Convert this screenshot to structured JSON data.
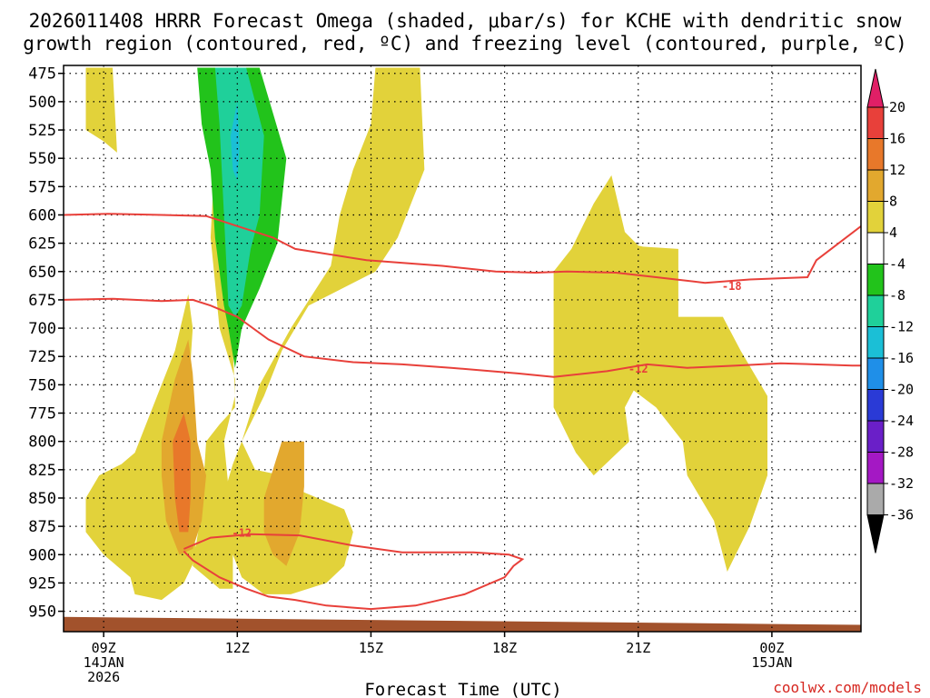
{
  "chart_data": {
    "type": "heatmap",
    "title": [
      "2026011408 HRRR Forecast Omega (shaded, μbar/s) for KCHE with dendritic snow",
      "growth region (contoured, red, ºC) and freezing level (contoured, purple, ºC)"
    ],
    "xlabel": "Forecast Time (UTC)",
    "ylabel": "",
    "credit": "coolwx.com/models",
    "x_ticks": [
      {
        "hour": 9,
        "lines": [
          "09Z",
          "14JAN",
          "2026"
        ]
      },
      {
        "hour": 12,
        "lines": [
          "12Z"
        ]
      },
      {
        "hour": 15,
        "lines": [
          "15Z"
        ]
      },
      {
        "hour": 18,
        "lines": [
          "18Z"
        ]
      },
      {
        "hour": 21,
        "lines": [
          "21Z"
        ]
      },
      {
        "hour": 24,
        "lines": [
          "00Z",
          "15JAN"
        ]
      }
    ],
    "xlim": [
      8.1,
      26.0
    ],
    "y_ticks": [
      475,
      500,
      525,
      550,
      575,
      600,
      625,
      650,
      675,
      700,
      725,
      750,
      775,
      800,
      825,
      850,
      875,
      900,
      925,
      950
    ],
    "ylim": [
      468,
      968
    ],
    "colorbar": {
      "ticks": [
        "20",
        "16",
        "12",
        "8",
        "4",
        "-4",
        "-8",
        "-12",
        "-16",
        "-20",
        "-24",
        "-28",
        "-32",
        "-36"
      ],
      "colors": [
        "#e01f66",
        "#e8403a",
        "#e8782a",
        "#e2a82e",
        "#e2d23a",
        "#ffffff",
        "#22c31b",
        "#1fd09a",
        "#1bbfd6",
        "#1f8fe8",
        "#2a3ad6",
        "#6a1fc8",
        "#a418c4",
        "#aaaaaa",
        "#000000"
      ]
    },
    "terrain_color": "#a2522c",
    "omega_regions": [
      {
        "name": "positive-4-8",
        "value": 4,
        "color": "#e2d23a",
        "polygons": [
          [
            [
              8.6,
              470
            ],
            [
              9.2,
              470
            ],
            [
              9.3,
              545
            ],
            [
              9.0,
              535
            ],
            [
              8.6,
              525
            ]
          ],
          [
            [
              11.6,
              470
            ],
            [
              11.4,
              620
            ],
            [
              11.6,
              700
            ],
            [
              11.95,
              745
            ],
            [
              11.95,
              770
            ],
            [
              11.6,
              785
            ],
            [
              11.3,
              800
            ],
            [
              11.2,
              860
            ],
            [
              11.0,
              910
            ],
            [
              11.6,
              930
            ],
            [
              11.9,
              930
            ],
            [
              11.9,
              880
            ],
            [
              11.7,
              800
            ],
            [
              11.95,
              760
            ]
          ],
          [
            [
              15.1,
              470
            ],
            [
              16.1,
              470
            ],
            [
              16.2,
              560
            ],
            [
              15.6,
              620
            ],
            [
              15.1,
              650
            ],
            [
              13.6,
              680
            ],
            [
              13.0,
              720
            ],
            [
              12.6,
              760
            ],
            [
              12.1,
              800
            ],
            [
              12.4,
              825
            ],
            [
              13.0,
              830
            ],
            [
              13.5,
              845
            ],
            [
              14.4,
              860
            ],
            [
              14.6,
              880
            ],
            [
              14.4,
              910
            ],
            [
              14.0,
              925
            ],
            [
              13.2,
              935
            ],
            [
              12.6,
              935
            ],
            [
              12.1,
              920
            ],
            [
              11.9,
              900
            ],
            [
              11.6,
              860
            ],
            [
              11.9,
              820
            ],
            [
              12.1,
              800
            ],
            [
              12.5,
              750
            ],
            [
              13.2,
              700
            ],
            [
              14.1,
              645
            ],
            [
              14.3,
              600
            ],
            [
              14.6,
              560
            ],
            [
              15.0,
              520
            ]
          ],
          [
            [
              19.1,
              650
            ],
            [
              19.5,
              630
            ],
            [
              20.0,
              590
            ],
            [
              20.4,
              565
            ],
            [
              20.7,
              615
            ],
            [
              21.0,
              627
            ],
            [
              21.1,
              628
            ],
            [
              21.9,
              630
            ],
            [
              21.9,
              690
            ],
            [
              22.9,
              690
            ],
            [
              23.3,
              720
            ],
            [
              23.9,
              760
            ],
            [
              23.9,
              830
            ],
            [
              23.5,
              875
            ],
            [
              23.0,
              915
            ],
            [
              22.7,
              870
            ],
            [
              22.1,
              830
            ],
            [
              22.0,
              800
            ],
            [
              21.4,
              770
            ],
            [
              20.9,
              755
            ],
            [
              20.7,
              770
            ],
            [
              20.8,
              800
            ],
            [
              20.0,
              830
            ],
            [
              19.6,
              810
            ],
            [
              19.1,
              770
            ]
          ],
          [
            [
              9.4,
              820
            ],
            [
              9.7,
              810
            ],
            [
              10.2,
              760
            ],
            [
              10.6,
              720
            ],
            [
              10.9,
              670
            ],
            [
              11.0,
              700
            ],
            [
              10.9,
              760
            ],
            [
              10.8,
              800
            ],
            [
              10.7,
              840
            ],
            [
              11.0,
              880
            ],
            [
              11.1,
              900
            ],
            [
              10.8,
              925
            ],
            [
              10.3,
              940
            ],
            [
              9.7,
              935
            ],
            [
              9.6,
              920
            ],
            [
              9.0,
              900
            ],
            [
              8.6,
              880
            ],
            [
              8.6,
              850
            ],
            [
              8.9,
              830
            ]
          ]
        ]
      },
      {
        "name": "positive-8-12",
        "value": 8,
        "color": "#e2a82e",
        "polygons": [
          [
            [
              10.3,
              800
            ],
            [
              10.6,
              745
            ],
            [
              10.9,
              710
            ],
            [
              11.0,
              740
            ],
            [
              11.1,
              800
            ],
            [
              11.3,
              830
            ],
            [
              11.2,
              870
            ],
            [
              11.0,
              895
            ],
            [
              10.7,
              900
            ],
            [
              10.4,
              870
            ],
            [
              10.3,
              830
            ]
          ],
          [
            [
              12.6,
              850
            ],
            [
              13.0,
              800
            ],
            [
              13.5,
              800
            ],
            [
              13.5,
              840
            ],
            [
              13.4,
              880
            ],
            [
              13.1,
              910
            ],
            [
              12.8,
              900
            ],
            [
              12.6,
              880
            ]
          ]
        ]
      },
      {
        "name": "positive-12-16",
        "value": 12,
        "color": "#e8782a",
        "polygons": [
          [
            [
              10.55,
              800
            ],
            [
              10.8,
              775
            ],
            [
              10.95,
              800
            ],
            [
              10.95,
              850
            ],
            [
              10.9,
              880
            ],
            [
              10.7,
              880
            ],
            [
              10.6,
              850
            ]
          ]
        ]
      },
      {
        "name": "negative-4-8",
        "value": -4,
        "color": "#22c31b",
        "polygons": [
          [
            [
              11.1,
              470
            ],
            [
              12.5,
              470
            ],
            [
              13.1,
              550
            ],
            [
              12.9,
              625
            ],
            [
              12.5,
              665
            ],
            [
              12.1,
              700
            ],
            [
              11.95,
              735
            ],
            [
              11.8,
              700
            ],
            [
              11.7,
              680
            ],
            [
              11.5,
              620
            ],
            [
              11.4,
              560
            ],
            [
              11.2,
              520
            ]
          ]
        ]
      },
      {
        "name": "negative-8-12",
        "value": -8,
        "color": "#1fd09a",
        "polygons": [
          [
            [
              11.5,
              470
            ],
            [
              12.2,
              470
            ],
            [
              12.6,
              530
            ],
            [
              12.5,
              600
            ],
            [
              12.3,
              630
            ],
            [
              12.1,
              680
            ],
            [
              11.95,
              690
            ],
            [
              11.8,
              680
            ],
            [
              11.7,
              600
            ],
            [
              11.6,
              520
            ]
          ]
        ]
      },
      {
        "name": "negative-12-16",
        "value": -12,
        "color": "#1bbfd6",
        "polygons": [
          [
            [
              11.85,
              530
            ],
            [
              12.0,
              500
            ],
            [
              12.05,
              540
            ],
            [
              12.0,
              570
            ],
            [
              11.9,
              560
            ]
          ]
        ]
      }
    ],
    "temperature_contours": [
      {
        "label": "-18",
        "color": "#e8403a",
        "points": [
          [
            8.1,
            600
          ],
          [
            9.1,
            599
          ],
          [
            10.3,
            600
          ],
          [
            11.3,
            601
          ],
          [
            12.8,
            620
          ],
          [
            13.3,
            630
          ],
          [
            14.9,
            640
          ],
          [
            16.6,
            645
          ],
          [
            17.8,
            650
          ],
          [
            18.7,
            651
          ],
          [
            19.4,
            650
          ],
          [
            20.5,
            651
          ],
          [
            21.4,
            655
          ],
          [
            22.5,
            660
          ],
          [
            23.5,
            657
          ],
          [
            24.8,
            655
          ],
          [
            25.0,
            640
          ],
          [
            26.0,
            610
          ]
        ]
      },
      {
        "label": "-12",
        "color": "#e8403a",
        "points": [
          [
            8.1,
            675
          ],
          [
            9.2,
            674
          ],
          [
            10.3,
            676
          ],
          [
            11.0,
            675
          ],
          [
            11.4,
            680
          ],
          [
            12.0,
            690
          ],
          [
            12.7,
            710
          ],
          [
            13.5,
            725
          ],
          [
            14.6,
            730
          ],
          [
            15.7,
            732
          ],
          [
            16.8,
            735
          ],
          [
            18.3,
            740
          ],
          [
            19.1,
            743
          ],
          [
            20.3,
            738
          ],
          [
            21.2,
            732
          ],
          [
            22.1,
            735
          ],
          [
            23.2,
            733
          ],
          [
            24.2,
            731
          ],
          [
            25.8,
            733
          ],
          [
            26.0,
            733
          ]
        ]
      },
      {
        "label": "-12",
        "color": "#e8403a",
        "points": [
          [
            10.8,
            895
          ],
          [
            11.4,
            885
          ],
          [
            12.3,
            882
          ],
          [
            13.4,
            883
          ],
          [
            14.6,
            892
          ],
          [
            15.7,
            898
          ],
          [
            17.3,
            898
          ],
          [
            18.1,
            900
          ],
          [
            18.4,
            904
          ],
          [
            18.2,
            910
          ],
          [
            18.0,
            920
          ],
          [
            17.1,
            935
          ],
          [
            16.0,
            945
          ],
          [
            15.0,
            948
          ],
          [
            14.0,
            945
          ],
          [
            13.3,
            940
          ],
          [
            12.7,
            937
          ],
          [
            12.2,
            930
          ],
          [
            11.6,
            920
          ],
          [
            11.0,
            905
          ],
          [
            10.8,
            897
          ]
        ]
      }
    ],
    "contour_labels": [
      {
        "text": "-18",
        "hour": 23.1,
        "pressure": 663
      },
      {
        "text": "-12",
        "hour": 21.0,
        "pressure": 736
      },
      {
        "text": "-12",
        "hour": 12.1,
        "pressure": 881
      }
    ],
    "terrain_pressure_left": 955,
    "terrain_pressure_right": 962
  }
}
